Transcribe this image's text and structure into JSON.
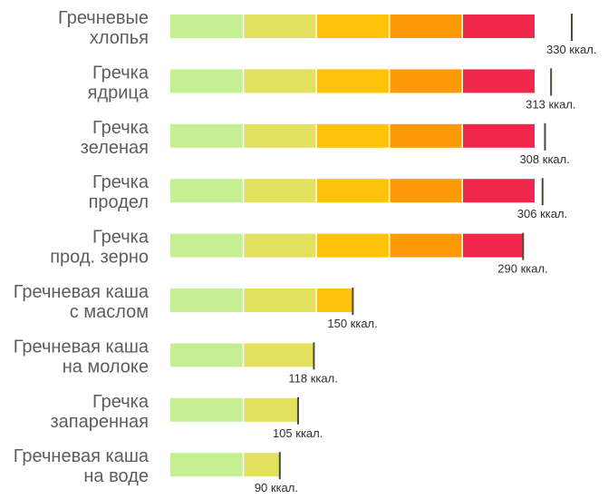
{
  "chart_data": {
    "type": "bar",
    "orientation": "horizontal",
    "unit": "ккал.",
    "categories": [
      [
        "Гречневые",
        "хлопья"
      ],
      [
        "Гречка",
        "ядрица"
      ],
      [
        "Гречка",
        "зеленая"
      ],
      [
        "Гречка",
        "продел"
      ],
      [
        "Гречка",
        "прод. зерно"
      ],
      [
        "Гречневая каша",
        "с маслом"
      ],
      [
        "Гречневая каша",
        "на молоке"
      ],
      [
        "Гречка",
        "запаренная"
      ],
      [
        "Гречневая каша",
        "на воде"
      ]
    ],
    "values": [
      330,
      313,
      308,
      306,
      290,
      150,
      118,
      105,
      90
    ],
    "value_labels": [
      "330 ккал.",
      "313 ккал.",
      "308 ккал.",
      "306 ккал.",
      "290 ккал.",
      "150 ккал.",
      "118 ккал.",
      "105 ккал.",
      "90 ккал."
    ],
    "xlim": [
      0,
      350
    ],
    "segment_colors": [
      "#c4ef93",
      "#e1e15d",
      "#fdc30b",
      "#fd9a07",
      "#f0274a"
    ],
    "segment_bounds": [
      0,
      60,
      120,
      180,
      240,
      300
    ],
    "grid": false,
    "legend": "none",
    "title": "",
    "xlabel": "",
    "ylabel": ""
  }
}
